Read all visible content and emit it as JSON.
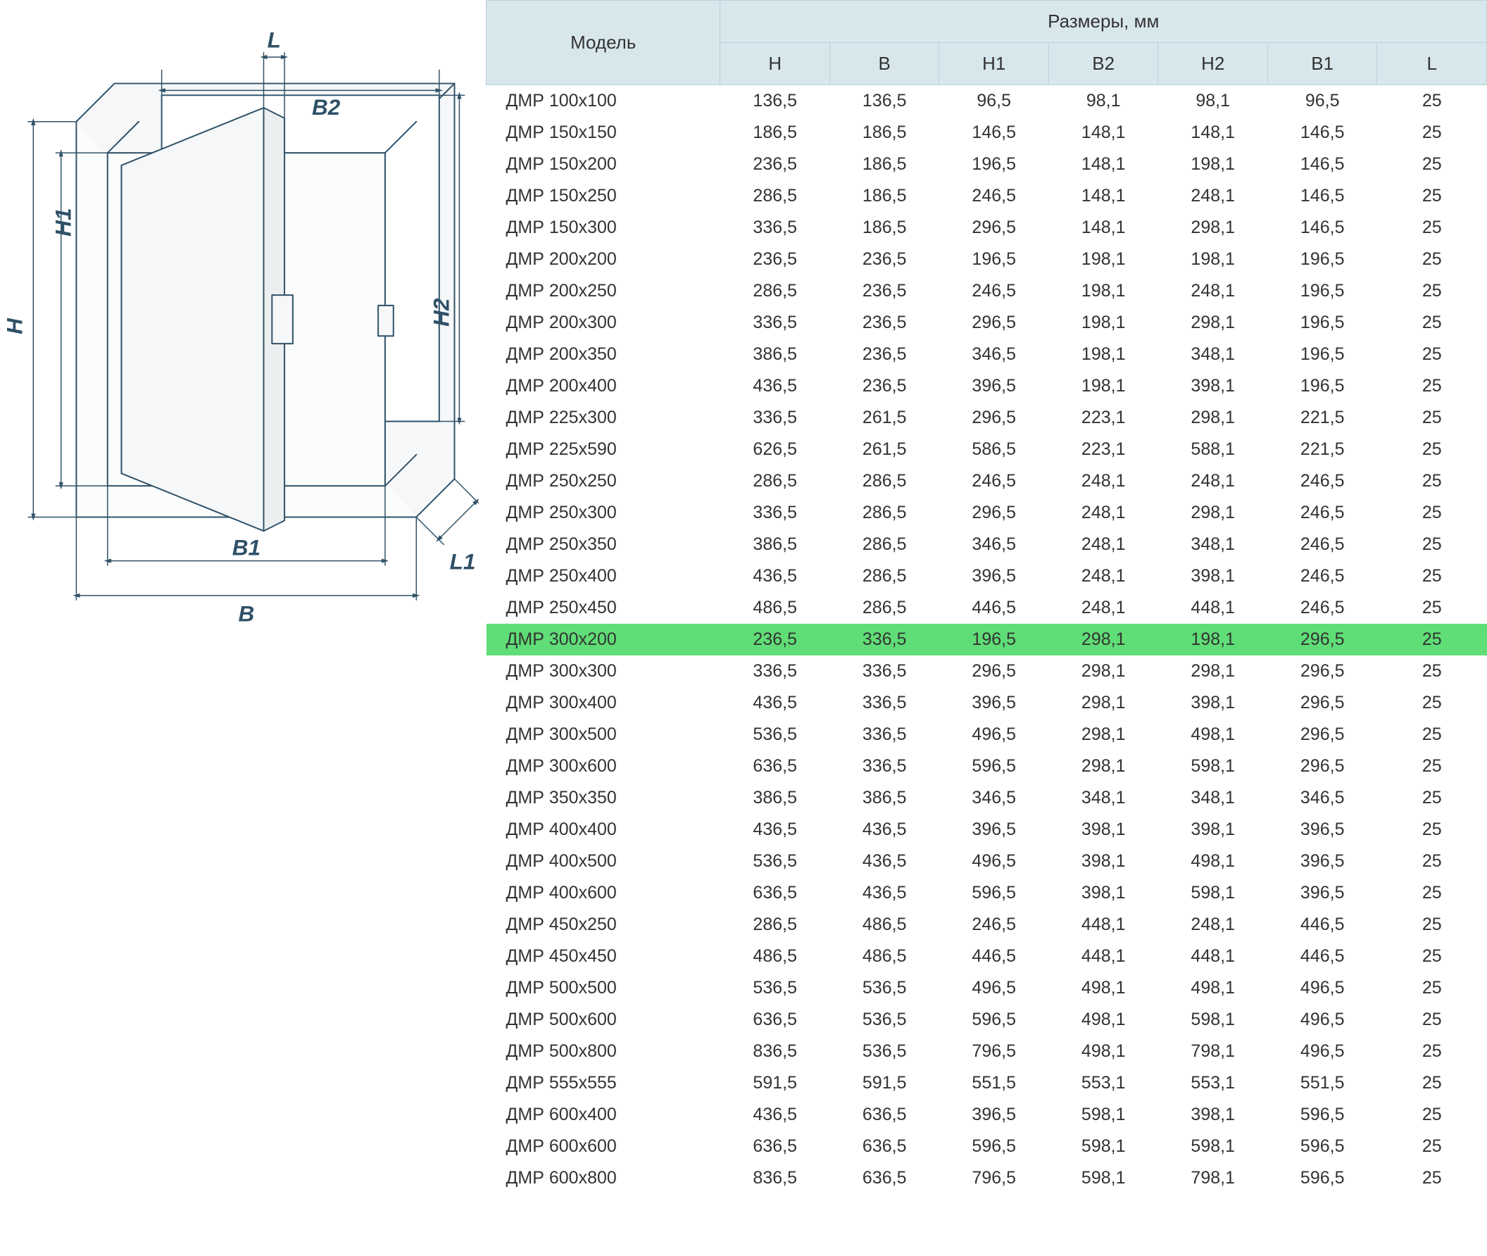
{
  "table": {
    "header_group_label": "Размеры, мм",
    "model_label": "Модель",
    "columns": [
      "H",
      "B",
      "H1",
      "B2",
      "H2",
      "B1",
      "L"
    ],
    "header_bg": "#d8e7ec",
    "header_border": "#b9d1da",
    "highlight_bg": "#5fdd76",
    "text_color": "#333333",
    "font_size_header": 26,
    "font_size_cell": 25,
    "highlight_row_index": 17,
    "rows": [
      {
        "model": "ДМР 100х100",
        "H": "136,5",
        "B": "136,5",
        "H1": "96,5",
        "B2": "98,1",
        "H2": "98,1",
        "B1": "96,5",
        "L": "25"
      },
      {
        "model": "ДМР 150х150",
        "H": "186,5",
        "B": "186,5",
        "H1": "146,5",
        "B2": "148,1",
        "H2": "148,1",
        "B1": "146,5",
        "L": "25"
      },
      {
        "model": "ДМР 150х200",
        "H": "236,5",
        "B": "186,5",
        "H1": "196,5",
        "B2": "148,1",
        "H2": "198,1",
        "B1": "146,5",
        "L": "25"
      },
      {
        "model": "ДМР 150х250",
        "H": "286,5",
        "B": "186,5",
        "H1": "246,5",
        "B2": "148,1",
        "H2": "248,1",
        "B1": "146,5",
        "L": "25"
      },
      {
        "model": "ДМР 150х300",
        "H": "336,5",
        "B": "186,5",
        "H1": "296,5",
        "B2": "148,1",
        "H2": "298,1",
        "B1": "146,5",
        "L": "25"
      },
      {
        "model": "ДМР 200х200",
        "H": "236,5",
        "B": "236,5",
        "H1": "196,5",
        "B2": "198,1",
        "H2": "198,1",
        "B1": "196,5",
        "L": "25"
      },
      {
        "model": "ДМР 200х250",
        "H": "286,5",
        "B": "236,5",
        "H1": "246,5",
        "B2": "198,1",
        "H2": "248,1",
        "B1": "196,5",
        "L": "25"
      },
      {
        "model": "ДМР 200х300",
        "H": "336,5",
        "B": "236,5",
        "H1": "296,5",
        "B2": "198,1",
        "H2": "298,1",
        "B1": "196,5",
        "L": "25"
      },
      {
        "model": "ДМР 200х350",
        "H": "386,5",
        "B": "236,5",
        "H1": "346,5",
        "B2": "198,1",
        "H2": "348,1",
        "B1": "196,5",
        "L": "25"
      },
      {
        "model": "ДМР 200х400",
        "H": "436,5",
        "B": "236,5",
        "H1": "396,5",
        "B2": "198,1",
        "H2": "398,1",
        "B1": "196,5",
        "L": "25"
      },
      {
        "model": "ДМР 225х300",
        "H": "336,5",
        "B": "261,5",
        "H1": "296,5",
        "B2": "223,1",
        "H2": "298,1",
        "B1": "221,5",
        "L": "25"
      },
      {
        "model": "ДМР 225х590",
        "H": "626,5",
        "B": "261,5",
        "H1": "586,5",
        "B2": "223,1",
        "H2": "588,1",
        "B1": "221,5",
        "L": "25"
      },
      {
        "model": "ДМР 250х250",
        "H": "286,5",
        "B": "286,5",
        "H1": "246,5",
        "B2": "248,1",
        "H2": "248,1",
        "B1": "246,5",
        "L": "25"
      },
      {
        "model": "ДМР 250х300",
        "H": "336,5",
        "B": "286,5",
        "H1": "296,5",
        "B2": "248,1",
        "H2": "298,1",
        "B1": "246,5",
        "L": "25"
      },
      {
        "model": "ДМР 250х350",
        "H": "386,5",
        "B": "286,5",
        "H1": "346,5",
        "B2": "248,1",
        "H2": "348,1",
        "B1": "246,5",
        "L": "25"
      },
      {
        "model": "ДМР 250х400",
        "H": "436,5",
        "B": "286,5",
        "H1": "396,5",
        "B2": "248,1",
        "H2": "398,1",
        "B1": "246,5",
        "L": "25"
      },
      {
        "model": "ДМР 250х450",
        "H": "486,5",
        "B": "286,5",
        "H1": "446,5",
        "B2": "248,1",
        "H2": "448,1",
        "B1": "246,5",
        "L": "25"
      },
      {
        "model": "ДМР 300х200",
        "H": "236,5",
        "B": "336,5",
        "H1": "196,5",
        "B2": "298,1",
        "H2": "198,1",
        "B1": "296,5",
        "L": "25"
      },
      {
        "model": "ДМР 300х300",
        "H": "336,5",
        "B": "336,5",
        "H1": "296,5",
        "B2": "298,1",
        "H2": "298,1",
        "B1": "296,5",
        "L": "25"
      },
      {
        "model": "ДМР 300х400",
        "H": "436,5",
        "B": "336,5",
        "H1": "396,5",
        "B2": "298,1",
        "H2": "398,1",
        "B1": "296,5",
        "L": "25"
      },
      {
        "model": "ДМР 300х500",
        "H": "536,5",
        "B": "336,5",
        "H1": "496,5",
        "B2": "298,1",
        "H2": "498,1",
        "B1": "296,5",
        "L": "25"
      },
      {
        "model": "ДМР 300х600",
        "H": "636,5",
        "B": "336,5",
        "H1": "596,5",
        "B2": "298,1",
        "H2": "598,1",
        "B1": "296,5",
        "L": "25"
      },
      {
        "model": "ДМР 350х350",
        "H": "386,5",
        "B": "386,5",
        "H1": "346,5",
        "B2": "348,1",
        "H2": "348,1",
        "B1": "346,5",
        "L": "25"
      },
      {
        "model": "ДМР 400х400",
        "H": "436,5",
        "B": "436,5",
        "H1": "396,5",
        "B2": "398,1",
        "H2": "398,1",
        "B1": "396,5",
        "L": "25"
      },
      {
        "model": "ДМР 400х500",
        "H": "536,5",
        "B": "436,5",
        "H1": "496,5",
        "B2": "398,1",
        "H2": "498,1",
        "B1": "396,5",
        "L": "25"
      },
      {
        "model": "ДМР 400х600",
        "H": "636,5",
        "B": "436,5",
        "H1": "596,5",
        "B2": "398,1",
        "H2": "598,1",
        "B1": "396,5",
        "L": "25"
      },
      {
        "model": "ДМР 450х250",
        "H": "286,5",
        "B": "486,5",
        "H1": "246,5",
        "B2": "448,1",
        "H2": "248,1",
        "B1": "446,5",
        "L": "25"
      },
      {
        "model": "ДМР 450х450",
        "H": "486,5",
        "B": "486,5",
        "H1": "446,5",
        "B2": "448,1",
        "H2": "448,1",
        "B1": "446,5",
        "L": "25"
      },
      {
        "model": "ДМР 500х500",
        "H": "536,5",
        "B": "536,5",
        "H1": "496,5",
        "B2": "498,1",
        "H2": "498,1",
        "B1": "496,5",
        "L": "25"
      },
      {
        "model": "ДМР 500х600",
        "H": "636,5",
        "B": "536,5",
        "H1": "596,5",
        "B2": "498,1",
        "H2": "598,1",
        "B1": "496,5",
        "L": "25"
      },
      {
        "model": "ДМР 500х800",
        "H": "836,5",
        "B": "536,5",
        "H1": "796,5",
        "B2": "498,1",
        "H2": "798,1",
        "B1": "496,5",
        "L": "25"
      },
      {
        "model": "ДМР 555х555",
        "H": "591,5",
        "B": "591,5",
        "H1": "551,5",
        "B2": "553,1",
        "H2": "553,1",
        "B1": "551,5",
        "L": "25"
      },
      {
        "model": "ДМР 600х400",
        "H": "436,5",
        "B": "636,5",
        "H1": "396,5",
        "B2": "598,1",
        "H2": "398,1",
        "B1": "596,5",
        "L": "25"
      },
      {
        "model": "ДМР 600х600",
        "H": "636,5",
        "B": "636,5",
        "H1": "596,5",
        "B2": "598,1",
        "H2": "598,1",
        "B1": "596,5",
        "L": "25"
      },
      {
        "model": "ДМР 600х800",
        "H": "836,5",
        "B": "636,5",
        "H1": "796,5",
        "B2": "598,1",
        "H2": "798,1",
        "B1": "596,5",
        "L": "25"
      }
    ]
  },
  "diagram": {
    "line_color": "#2f5168",
    "fill_color": "#fbfcfc",
    "face_fill": "#f5f7f8",
    "label_font_size": 32,
    "label_font_style": "italic",
    "label_font_weight": "bold",
    "labels": {
      "H": "H",
      "H1": "H1",
      "H2": "H2",
      "B": "B",
      "B1": "B1",
      "B2": "B2",
      "L": "L",
      "L1": "L1"
    }
  }
}
